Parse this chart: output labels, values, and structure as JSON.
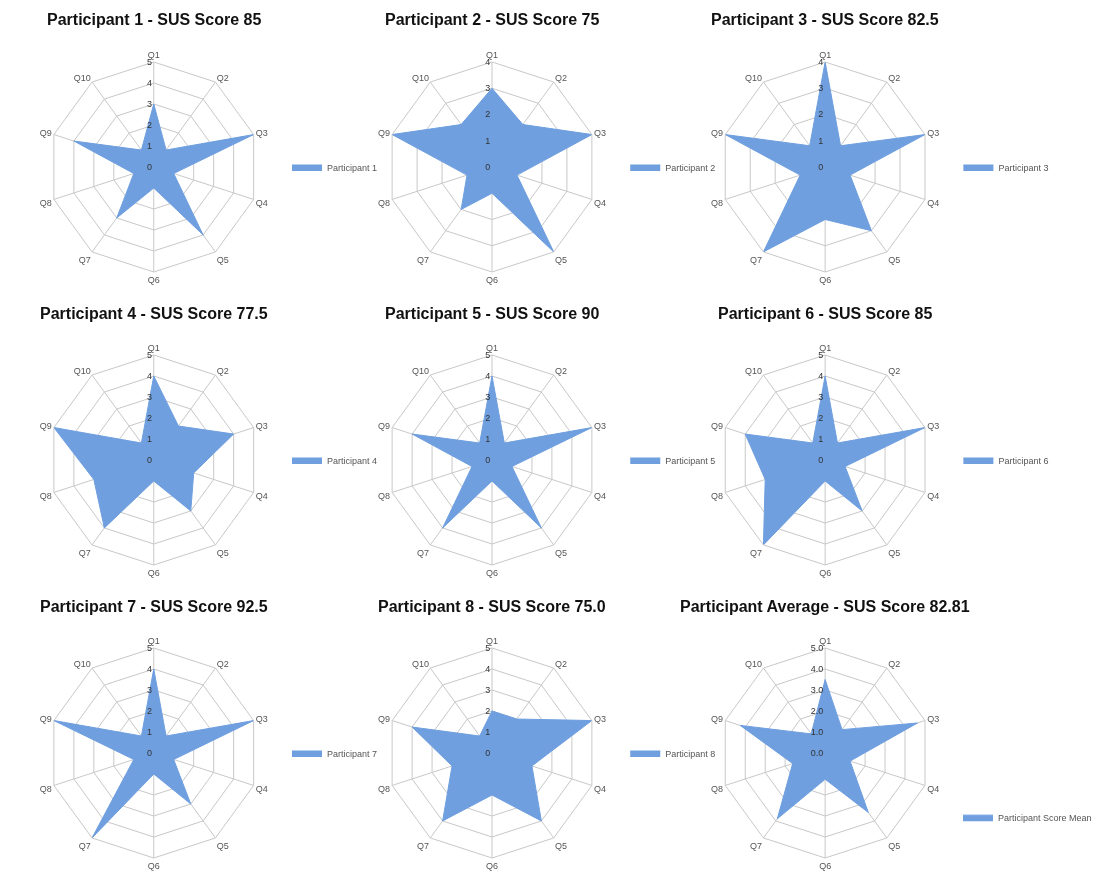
{
  "chart_data": [
    {
      "type": "radar",
      "title": "Participant 1 - SUS Score 85",
      "categories": [
        "Q1",
        "Q2",
        "Q3",
        "Q4",
        "Q5",
        "Q6",
        "Q7",
        "Q8",
        "Q9",
        "Q10"
      ],
      "ylim": [
        0,
        5
      ],
      "yticks": [
        0,
        1,
        2,
        3,
        4,
        5
      ],
      "grid": true,
      "legend": "right",
      "series": [
        {
          "name": "Participant 1",
          "color": "#6f9fdf",
          "values": [
            3,
            1,
            5,
            1,
            4,
            1,
            3,
            1,
            4,
            1
          ]
        }
      ]
    },
    {
      "type": "radar",
      "title": "Participant 2 - SUS Score 75",
      "categories": [
        "Q1",
        "Q2",
        "Q3",
        "Q4",
        "Q5",
        "Q6",
        "Q7",
        "Q8",
        "Q9",
        "Q10"
      ],
      "ylim": [
        0,
        4
      ],
      "yticks": [
        0,
        1,
        2,
        3,
        4
      ],
      "grid": true,
      "legend": "right",
      "series": [
        {
          "name": "Participant 2",
          "color": "#6f9fdf",
          "values": [
            3,
            2,
            4,
            1,
            4,
            1,
            2,
            1,
            4,
            2
          ]
        }
      ]
    },
    {
      "type": "radar",
      "title": "Participant 3 - SUS Score 82.5",
      "categories": [
        "Q1",
        "Q2",
        "Q3",
        "Q4",
        "Q5",
        "Q6",
        "Q7",
        "Q8",
        "Q9",
        "Q10"
      ],
      "ylim": [
        0,
        4
      ],
      "yticks": [
        0,
        1,
        2,
        3,
        4
      ],
      "grid": true,
      "legend": "right",
      "series": [
        {
          "name": "Participant 3",
          "color": "#6f9fdf",
          "values": [
            4,
            1,
            4,
            1,
            3,
            2,
            4,
            1,
            4,
            1
          ]
        }
      ]
    },
    {
      "type": "radar",
      "title": "Participant 4 - SUS Score 77.5",
      "categories": [
        "Q1",
        "Q2",
        "Q3",
        "Q4",
        "Q5",
        "Q6",
        "Q7",
        "Q8",
        "Q9",
        "Q10"
      ],
      "ylim": [
        0,
        5
      ],
      "yticks": [
        0,
        1,
        2,
        3,
        4,
        5
      ],
      "grid": true,
      "legend": "right",
      "series": [
        {
          "name": "Participant 4",
          "color": "#6f9fdf",
          "values": [
            4,
            2,
            4,
            2,
            3,
            1,
            4,
            3,
            5,
            1
          ]
        }
      ]
    },
    {
      "type": "radar",
      "title": "Participant 5 - SUS Score 90",
      "categories": [
        "Q1",
        "Q2",
        "Q3",
        "Q4",
        "Q5",
        "Q6",
        "Q7",
        "Q8",
        "Q9",
        "Q10"
      ],
      "ylim": [
        0,
        5
      ],
      "yticks": [
        0,
        1,
        2,
        3,
        4,
        5
      ],
      "grid": true,
      "legend": "right",
      "series": [
        {
          "name": "Participant 5",
          "color": "#6f9fdf",
          "values": [
            4,
            1,
            5,
            1,
            4,
            1,
            4,
            1,
            4,
            1
          ]
        }
      ]
    },
    {
      "type": "radar",
      "title": "Participant 6 - SUS Score 85",
      "categories": [
        "Q1",
        "Q2",
        "Q3",
        "Q4",
        "Q5",
        "Q6",
        "Q7",
        "Q8",
        "Q9",
        "Q10"
      ],
      "ylim": [
        0,
        5
      ],
      "yticks": [
        0,
        1,
        2,
        3,
        4,
        5
      ],
      "grid": true,
      "legend": "right",
      "series": [
        {
          "name": "Participant 6",
          "color": "#6f9fdf",
          "values": [
            4,
            1,
            5,
            1,
            3,
            1,
            5,
            3,
            4,
            1
          ]
        }
      ]
    },
    {
      "type": "radar",
      "title": "Participant 7 - SUS Score 92.5",
      "categories": [
        "Q1",
        "Q2",
        "Q3",
        "Q4",
        "Q5",
        "Q6",
        "Q7",
        "Q8",
        "Q9",
        "Q10"
      ],
      "ylim": [
        0,
        5
      ],
      "yticks": [
        0,
        1,
        2,
        3,
        4,
        5
      ],
      "grid": true,
      "legend": "right",
      "series": [
        {
          "name": "Participant 7",
          "color": "#6f9fdf",
          "values": [
            4,
            1,
            5,
            1,
            3,
            1,
            5,
            1,
            5,
            1
          ]
        }
      ]
    },
    {
      "type": "radar",
      "title": "Participant 8 - SUS Score 75.0",
      "categories": [
        "Q1",
        "Q2",
        "Q3",
        "Q4",
        "Q5",
        "Q6",
        "Q7",
        "Q8",
        "Q9",
        "Q10"
      ],
      "ylim": [
        0,
        5
      ],
      "yticks": [
        0,
        1,
        2,
        3,
        4,
        5
      ],
      "grid": true,
      "legend": "right",
      "series": [
        {
          "name": "Participant 8",
          "color": "#6f9fdf",
          "values": [
            2,
            2,
            5,
            2,
            4,
            2,
            4,
            2,
            4,
            1
          ]
        }
      ]
    },
    {
      "type": "radar",
      "title": "Participant Average - SUS Score 82.81",
      "categories": [
        "Q1",
        "Q2",
        "Q3",
        "Q4",
        "Q5",
        "Q6",
        "Q7",
        "Q8",
        "Q9",
        "Q10"
      ],
      "ylim": [
        0,
        5
      ],
      "yticks": [
        {
          "value": 0,
          "label": "0.0"
        },
        {
          "value": 1,
          "label": "1.0"
        },
        {
          "value": 2,
          "label": "2.0"
        },
        {
          "value": 3,
          "label": "3.0"
        },
        {
          "value": 4,
          "label": "4.0"
        },
        {
          "value": 5,
          "label": "5.0"
        }
      ],
      "grid": true,
      "legend": "bottom right",
      "series": [
        {
          "name": "Participant Score Mean",
          "color": "#6f9fdf",
          "values": [
            3.5,
            1.375,
            4.625,
            1.25,
            3.5,
            1.25,
            3.875,
            1.625,
            4.25,
            1.125
          ]
        }
      ]
    }
  ]
}
